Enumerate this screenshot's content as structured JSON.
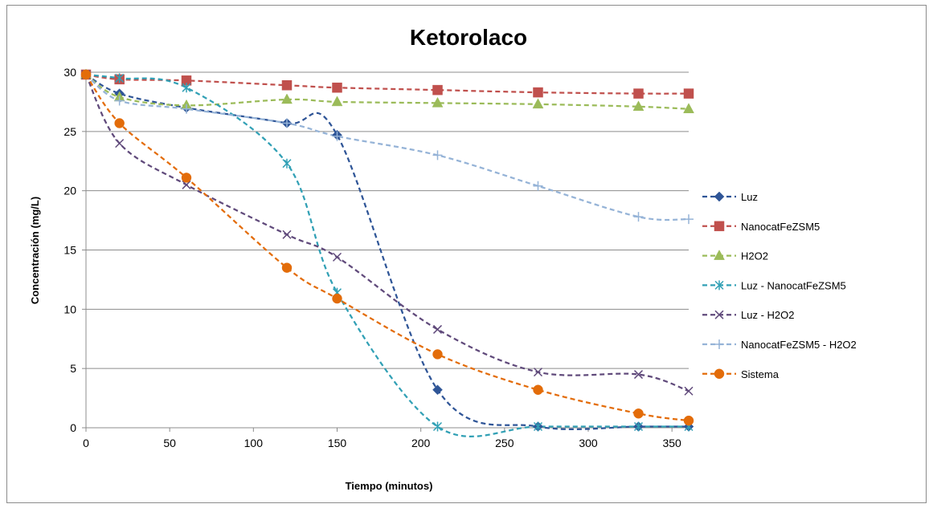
{
  "chart_data": {
    "type": "line",
    "title": "Ketorolaco",
    "xlabel": "Tiempo (minutos)",
    "ylabel": "Concentración (mg/L)",
    "xlim": [
      0,
      360
    ],
    "ylim": [
      0,
      30
    ],
    "xticks": [
      "0",
      "50",
      "100",
      "150",
      "200",
      "250",
      "300",
      "350"
    ],
    "yticks": [
      "0",
      "5",
      "10",
      "15",
      "20",
      "25",
      "30"
    ],
    "grid": "horizontal",
    "legend_position": "right",
    "x": [
      0,
      20,
      60,
      120,
      150,
      210,
      270,
      330,
      360
    ],
    "series": [
      {
        "name": "Luz",
        "color": "#2f5597",
        "marker": "diamond",
        "values": [
          29.8,
          28.2,
          27.0,
          25.7,
          24.7,
          3.2,
          0.1,
          0.1,
          0.1
        ]
      },
      {
        "name": "NanocatFeZSM5",
        "color": "#c0504d",
        "marker": "square",
        "values": [
          29.8,
          29.4,
          29.3,
          28.9,
          28.7,
          28.5,
          28.3,
          28.2,
          28.2
        ]
      },
      {
        "name": "H2O2",
        "color": "#9bbb59",
        "marker": "triangle",
        "values": [
          29.8,
          27.9,
          27.2,
          27.7,
          27.5,
          27.4,
          27.3,
          27.1,
          26.9
        ]
      },
      {
        "name": "Luz - NanocatFeZSM5",
        "color": "#31a0b5",
        "marker": "asterisk",
        "values": [
          29.8,
          29.5,
          28.7,
          22.3,
          11.4,
          0.1,
          0.1,
          0.1,
          0.1
        ]
      },
      {
        "name": "Luz - H2O2",
        "color": "#604a7b",
        "marker": "x",
        "values": [
          29.8,
          24.0,
          20.5,
          16.3,
          14.4,
          8.3,
          4.7,
          4.5,
          3.1
        ]
      },
      {
        "name": "NanocatFeZSM5  - H2O2",
        "color": "#95b3d7",
        "marker": "plus",
        "values": [
          29.8,
          27.6,
          26.9,
          25.7,
          24.6,
          23.0,
          20.4,
          17.8,
          17.6
        ]
      },
      {
        "name": "Sistema",
        "color": "#e36c09",
        "marker": "circle",
        "values": [
          29.8,
          25.7,
          21.1,
          13.5,
          10.9,
          6.2,
          3.2,
          1.2,
          0.6
        ]
      }
    ]
  }
}
